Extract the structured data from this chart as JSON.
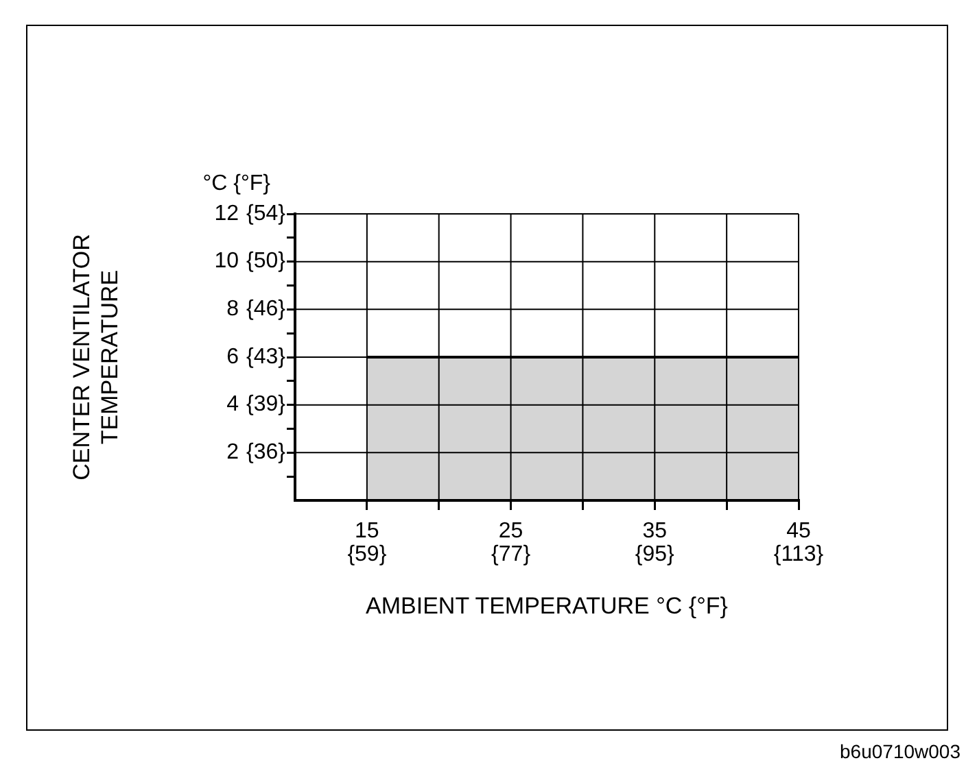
{
  "chart_data": {
    "type": "area",
    "xlabel": "AMBIENT TEMPERATURE °C {°F}",
    "ylabel": "CENTER VENTILATOR\nTEMPERATURE",
    "x": [
      15,
      45
    ],
    "series": [
      {
        "color": "#000000",
        "values": [
          6,
          6
        ]
      }
    ],
    "xlim": [
      10,
      45
    ],
    "xticks": [
      15,
      {
        "value": 20,
        "label": null
      },
      25,
      {
        "value": 30,
        "label": null
      },
      35,
      {
        "value": 40,
        "label": null
      },
      45
    ],
    "x2lim": [
      50,
      113
    ],
    "x2ticks": [
      {
        "value": 59,
        "label": "{59}"
      },
      {
        "value": 77,
        "label": "{77}"
      },
      {
        "value": 95,
        "label": "{95}"
      },
      {
        "value": 113,
        "label": "{113}"
      }
    ],
    "ylim": [
      0,
      12
    ],
    "yticks": [
      2,
      4,
      6,
      8,
      10,
      12
    ],
    "y2lim": [
      32,
      53.6
    ],
    "y2ticks": [
      {
        "value": 33.8,
        "label": null
      },
      {
        "value": 35.6,
        "label": "{36}"
      },
      {
        "value": 37.4,
        "label": null
      },
      {
        "value": 39.2,
        "label": "{39}"
      },
      {
        "value": 41,
        "label": null
      },
      {
        "value": 42.8,
        "label": "{43}"
      },
      {
        "value": 44.6,
        "label": null
      },
      {
        "value": 46.4,
        "label": "{46}"
      },
      {
        "value": 48.2,
        "label": null
      },
      {
        "value": 50,
        "label": "{50}"
      },
      {
        "value": 51.8,
        "label": null
      },
      {
        "value": 53.6,
        "label": "{54}"
      }
    ],
    "grid": true,
    "annotations": [
      "°C {°F}",
      "b6u0710w003"
    ]
  }
}
